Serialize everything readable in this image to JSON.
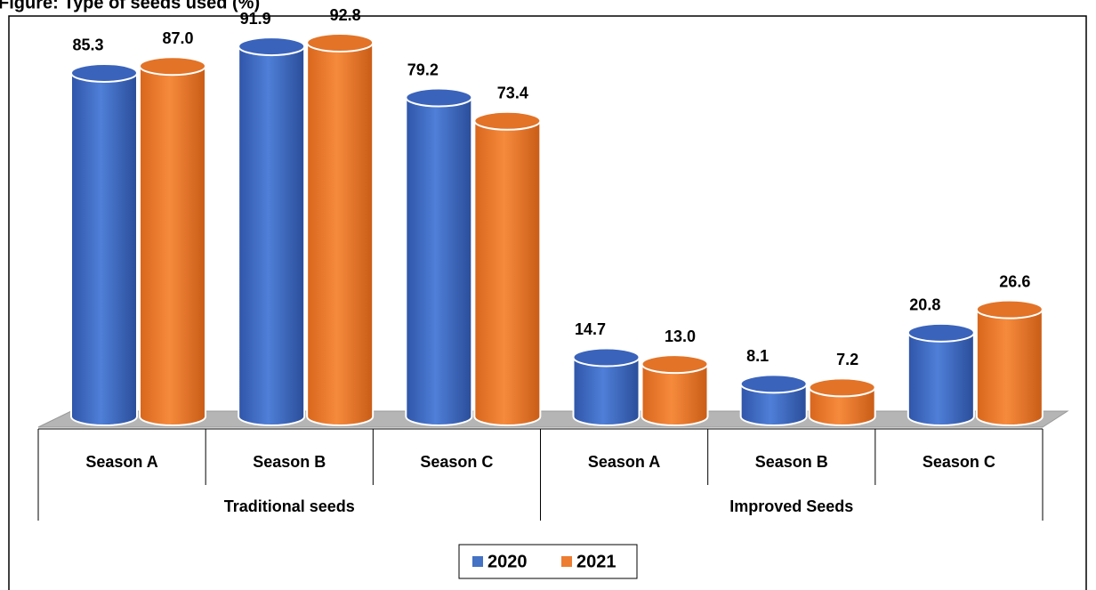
{
  "chart_data": {
    "type": "bar3d",
    "title": "Figure: Type of seeds used (%)",
    "groups": [
      {
        "name": "Traditional seeds",
        "categories": [
          "Season A",
          "Season B",
          "Season C"
        ]
      },
      {
        "name": "Improved Seeds",
        "categories": [
          "Season A",
          "Season B",
          "Season C"
        ]
      }
    ],
    "series": [
      {
        "name": "2020",
        "color": "#4472c4",
        "values": [
          85.3,
          91.9,
          79.2,
          14.7,
          8.1,
          20.8
        ],
        "value_labels": [
          "85.3",
          "91.9",
          "79.2",
          "14.7",
          "8.1",
          "20.8"
        ]
      },
      {
        "name": "2021",
        "color": "#ed7d31",
        "values": [
          87.0,
          92.8,
          73.4,
          13.0,
          7.2,
          26.6
        ],
        "value_labels": [
          "87.0",
          "92.8",
          "73.4",
          "13.0",
          "7.2",
          "26.6"
        ]
      }
    ],
    "legend": "bottom"
  }
}
